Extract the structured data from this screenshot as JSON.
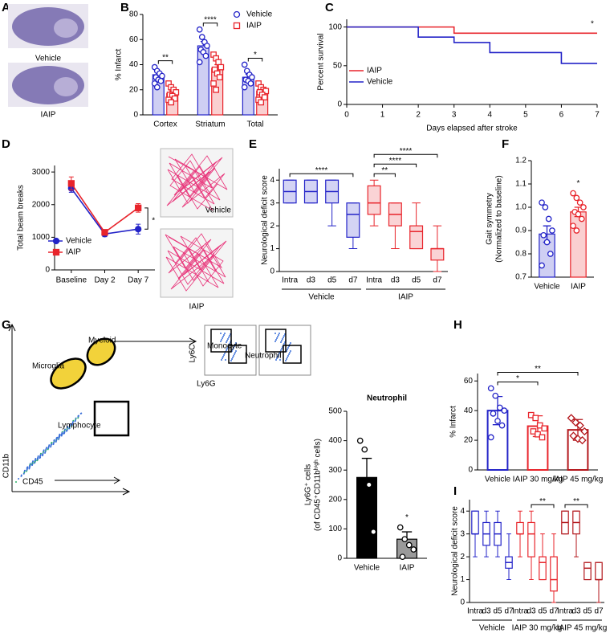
{
  "chart_data": [
    {
      "type": "image",
      "label": "A",
      "texts": [
        "Vehicle",
        "IAIP"
      ],
      "text_colors": [
        "#2323c8",
        "#e8242b"
      ]
    },
    {
      "type": "bar",
      "label": "B",
      "ylabel": "% Infarct",
      "categories": [
        "Cortex",
        "Striatum",
        "Total"
      ],
      "ylim": [
        0,
        80
      ],
      "yticks": [
        0,
        20,
        40,
        60,
        80
      ],
      "bar_style": "light",
      "error_direction": "up",
      "series": [
        {
          "name": "Vehicle",
          "color": "#2323c8",
          "marker": "circle",
          "values": [
            32,
            55,
            30
          ],
          "errors": [
            2.5,
            3.5,
            2.3
          ],
          "points": [
            [
              38,
              35,
              33,
              31,
              30,
              28,
              27,
              25,
              22
            ],
            [
              68,
              62,
              58,
              55,
              52,
              50,
              47,
              42
            ],
            [
              40,
              35,
              32,
              30,
              28,
              27,
              25,
              22
            ]
          ]
        },
        {
          "name": "IAIP",
          "color": "#e8242b",
          "marker": "square",
          "values": [
            17,
            37,
            19
          ],
          "errors": [
            2,
            3,
            1.8
          ],
          "points": [
            [
              25,
              22,
              20,
              18,
              16,
              15,
              13,
              12,
              10
            ],
            [
              48,
              45,
              42,
              38,
              36,
              33,
              30,
              25,
              20
            ],
            [
              25,
              22,
              20,
              19,
              18,
              16,
              14,
              12,
              10
            ]
          ]
        }
      ],
      "significance": [
        {
          "from": 0,
          "to": 0,
          "label": "**"
        },
        {
          "from": 1,
          "to": 1,
          "label": "****"
        },
        {
          "from": 2,
          "to": 2,
          "label": "*"
        }
      ]
    },
    {
      "type": "line",
      "label": "C",
      "ylabel": "Percent survival",
      "xlabel": "Days elapsed after stroke",
      "xlim": [
        0,
        7
      ],
      "xticks": [
        0,
        1,
        2,
        3,
        4,
        5,
        6,
        7
      ],
      "ylim": [
        0,
        110
      ],
      "yticks": [
        0,
        50,
        100
      ],
      "annotation": "*",
      "series": [
        {
          "name": "IAIP",
          "color": "#e8242b",
          "x": [
            0,
            3,
            3,
            7
          ],
          "values": [
            100,
            100,
            92,
            92
          ]
        },
        {
          "name": "Vehicle",
          "color": "#2323c8",
          "x": [
            0,
            2,
            2,
            3,
            3,
            4,
            4,
            6,
            6,
            7
          ],
          "values": [
            100,
            100,
            87,
            87,
            80,
            80,
            67,
            67,
            53,
            53
          ]
        }
      ]
    },
    {
      "type": "line",
      "label": "D",
      "ylabel": "Total beam breaks",
      "categories": [
        "Baseline",
        "Day 2",
        "Day 7"
      ],
      "ylim": [
        0,
        3200
      ],
      "yticks": [
        0,
        1000,
        2000,
        3000
      ],
      "annotation": "*",
      "image_labels": [
        "Vehicle",
        "IAIP"
      ],
      "image_label_colors": [
        "#2323c8",
        "#e8242b"
      ],
      "series": [
        {
          "name": "Vehicle",
          "color": "#2323c8",
          "marker": "circle",
          "values": [
            2500,
            1100,
            1250
          ],
          "errors": [
            120,
            80,
            150
          ]
        },
        {
          "name": "IAIP",
          "color": "#e8242b",
          "marker": "square",
          "values": [
            2650,
            1150,
            1900
          ],
          "errors": [
            200,
            80,
            130
          ]
        }
      ]
    },
    {
      "type": "box",
      "label": "E",
      "ylabel": "Neurological deficit score",
      "categories": [
        "Intra",
        "d3",
        "d5",
        "d7",
        "Intra",
        "d3",
        "d5",
        "d7"
      ],
      "ylim": [
        0,
        4.5
      ],
      "yticks": [
        0,
        1,
        2,
        3,
        4
      ],
      "box_fill": true,
      "groups": [
        {
          "name": "Vehicle",
          "color": "#2323c8",
          "from": 0,
          "to": 3
        },
        {
          "name": "IAIP",
          "color": "#e8242b",
          "from": 4,
          "to": 7
        }
      ],
      "boxes": [
        {
          "min": 3,
          "q1": 3,
          "median": 3.5,
          "q3": 4,
          "max": 4
        },
        {
          "min": 3,
          "q1": 3,
          "median": 3.5,
          "q3": 4,
          "max": 4
        },
        {
          "min": 2,
          "q1": 3,
          "median": 3.5,
          "q3": 4,
          "max": 4
        },
        {
          "min": 1,
          "q1": 1.5,
          "median": 2.5,
          "q3": 3,
          "max": 3
        },
        {
          "min": 2,
          "q1": 2.5,
          "median": 3,
          "q3": 3.75,
          "max": 4
        },
        {
          "min": 1,
          "q1": 2,
          "median": 2.5,
          "q3": 3,
          "max": 3
        },
        {
          "min": 1,
          "q1": 1,
          "median": 1.75,
          "q3": 2,
          "max": 3
        },
        {
          "min": 0,
          "q1": 0.5,
          "median": 1,
          "q3": 1,
          "max": 2
        }
      ],
      "significance": [
        {
          "from": 0,
          "to": 3,
          "label": "****"
        },
        {
          "from": 4,
          "to": 5,
          "label": "**"
        },
        {
          "from": 4,
          "to": 6,
          "label": "****"
        },
        {
          "from": 4,
          "to": 7,
          "label": "****"
        }
      ]
    },
    {
      "type": "bar",
      "label": "F",
      "ylabel": [
        "Gait symmetry",
        "(Normalized to baseline)"
      ],
      "categories": [
        "Vehicle",
        "IAIP"
      ],
      "ylim": [
        0.7,
        1.2
      ],
      "yticks": [
        0.7,
        0.8,
        0.9,
        {
          "value": 1,
          "label": "1.0"
        },
        1.1,
        1.2
      ],
      "bar_style": "light",
      "error_direction": "both",
      "series": [
        {
          "colors": [
            "#2323c8",
            "#e8242b"
          ],
          "marker": "circle",
          "values": [
            0.885,
            0.98
          ],
          "errors": [
            0.035,
            0.02
          ],
          "points": [
            [
              1.02,
              1.0,
              0.95,
              0.9,
              0.88,
              0.85,
              0.8,
              0.75
            ],
            [
              1.06,
              1.04,
              1.02,
              1.0,
              0.98,
              0.97,
              0.95,
              0.92,
              0.9
            ]
          ]
        }
      ],
      "significance": [
        {
          "from": 1,
          "to": 1,
          "label": "*"
        }
      ]
    },
    {
      "type": "image",
      "label": "G",
      "texts": [
        "Myeloid",
        "Microglia",
        "Lymphocyte",
        "CD11b",
        "CD45",
        "Monocyte",
        "Neutrophil",
        "Ly6C",
        "Ly6G"
      ]
    },
    {
      "type": "bar",
      "title": "Neutrophil",
      "ylabel": [
        "Ly6G⁺ cells",
        "(of CD45⁺CD11bʰⁱᵍʰ cells)"
      ],
      "categories": [
        "Vehicle",
        "IAIP"
      ],
      "ylim": [
        0,
        500
      ],
      "yticks": [
        0,
        100,
        200,
        300,
        400,
        500
      ],
      "bar_style": "solid",
      "error_direction": "up",
      "series": [
        {
          "colors": [
            "#000000",
            "#9a9a9a"
          ],
          "marker": "circle",
          "values": [
            275,
            65
          ],
          "errors": [
            65,
            25
          ],
          "points": [
            [
              400,
              370,
              250,
              90
            ],
            [
              105,
              65,
              45,
              30,
              5
            ]
          ]
        }
      ],
      "significance": [
        {
          "from": 1,
          "to": 1,
          "label": "*"
        }
      ]
    },
    {
      "type": "bar",
      "label": "H",
      "ylabel": "% Infarct",
      "categories": [
        "Vehicle",
        "IAIP 30 mg/kg",
        "IAIP 45 mg/kg"
      ],
      "ylim": [
        0,
        65
      ],
      "yticks": [
        0,
        20,
        40,
        60
      ],
      "bar_style": "outline",
      "error_direction": "both",
      "series": [
        {
          "colors": [
            "#2323c8",
            "#e8242b",
            "#b3161b"
          ],
          "markers": [
            "circle",
            "square",
            "diamond"
          ],
          "values": [
            40,
            29.5,
            27
          ],
          "errors": [
            9.5,
            7,
            7
          ],
          "points": [
            [
              55,
              50,
              42,
              40,
              38,
              33,
              30,
              22
            ],
            [
              37,
              35,
              30,
              28,
              26,
              24,
              22
            ],
            [
              35,
              32,
              30,
              26,
              23,
              21,
              20
            ]
          ]
        }
      ],
      "significance": [
        {
          "from": 0,
          "to": 1,
          "label": "*"
        },
        {
          "from": 0,
          "to": 2,
          "label": "**"
        }
      ]
    },
    {
      "type": "box",
      "label": "I",
      "ylabel": "Neurological deficit score",
      "categories": [
        "Intra",
        "d3",
        "d5",
        "d7",
        "Intra",
        "d3",
        "d5",
        "d7",
        "Intra",
        "d3",
        "d5",
        "d7"
      ],
      "ylim": [
        0,
        4.5
      ],
      "yticks": [
        0,
        1,
        2,
        3,
        4
      ],
      "box_fill": false,
      "groups": [
        {
          "name": "Vehicle",
          "color": "#2323c8",
          "from": 0,
          "to": 3
        },
        {
          "name": "IAIP 30 mg/kg",
          "color": "#e8242b",
          "from": 4,
          "to": 7
        },
        {
          "name": "IAIP 45 mg/kg",
          "color": "#b3161b",
          "from": 8,
          "to": 11
        }
      ],
      "boxes": [
        {
          "min": 2,
          "q1": 3,
          "median": 3,
          "q3": 4,
          "max": 4
        },
        {
          "min": 2,
          "q1": 2.5,
          "median": 3,
          "q3": 3.5,
          "max": 4
        },
        {
          "min": 2,
          "q1": 2.5,
          "median": 3,
          "q3": 3.5,
          "max": 4
        },
        {
          "min": 1,
          "q1": 1.5,
          "median": 1.75,
          "q3": 2,
          "max": 3
        },
        {
          "min": 2,
          "q1": 3,
          "median": 3,
          "q3": 3.5,
          "max": 4
        },
        {
          "min": 1,
          "q1": 2,
          "median": 3,
          "q3": 3.5,
          "max": 4
        },
        {
          "min": 1,
          "q1": 1,
          "median": 1.75,
          "q3": 2,
          "max": 3
        },
        {
          "min": 0,
          "q1": 0.5,
          "median": 1,
          "q3": 2,
          "max": 3
        },
        {
          "min": 3,
          "q1": 3,
          "median": 3.5,
          "q3": 4,
          "max": 4
        },
        {
          "min": 2,
          "q1": 3,
          "median": 3.5,
          "q3": 4,
          "max": 4
        },
        {
          "min": 1,
          "q1": 1,
          "median": 1.5,
          "q3": 1.75,
          "max": 1.75
        },
        {
          "min": 0,
          "q1": 1,
          "median": 1,
          "q3": 1.75,
          "max": 1.75
        }
      ],
      "significance": [
        {
          "from": 5,
          "to": 7,
          "label": "**"
        },
        {
          "from": 8,
          "to": 10,
          "label": "**"
        }
      ]
    }
  ]
}
